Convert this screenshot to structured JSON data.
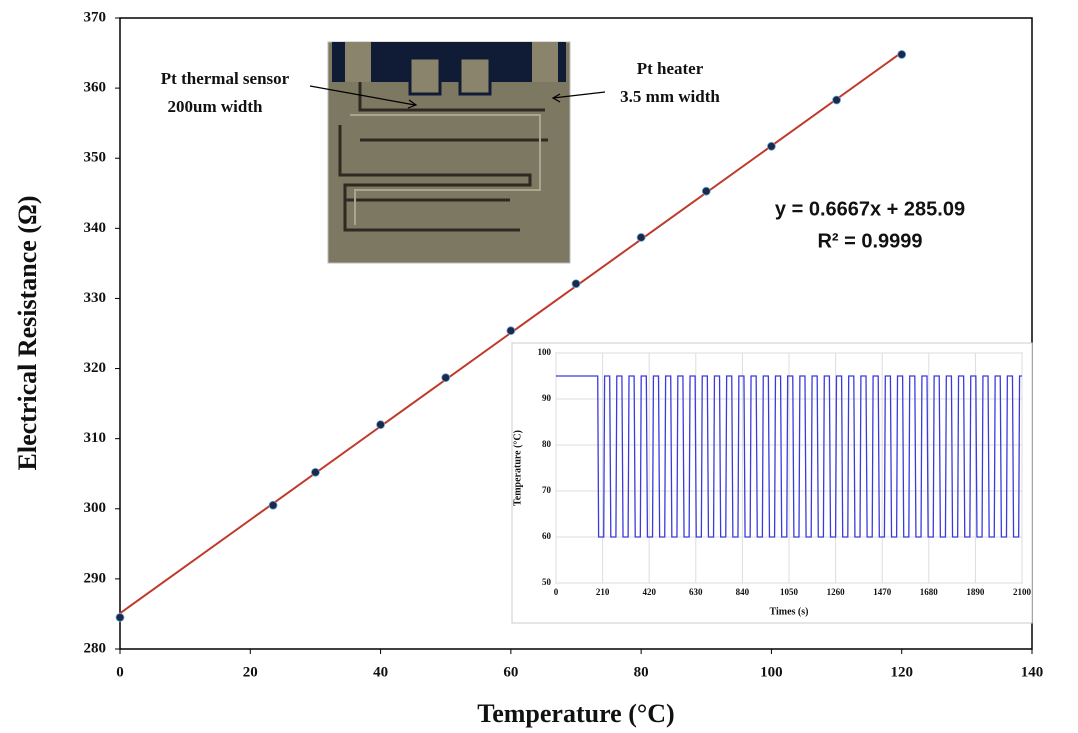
{
  "chart_data": [
    {
      "type": "scatter",
      "xlabel": "Temperature (°C)",
      "ylabel": "Electrical Resistance (Ω)",
      "series": [
        {
          "x": [
            0,
            23.5,
            30,
            40,
            50,
            60,
            70,
            80,
            90,
            100,
            110,
            120
          ],
          "values": [
            284.5,
            300.5,
            305.2,
            312,
            318.7,
            325.4,
            332.1,
            338.7,
            345.3,
            351.7,
            358.3,
            364.8
          ],
          "color": "#1b2a4a"
        }
      ],
      "trendline": {
        "x": [
          0,
          120
        ],
        "values": [
          285.09,
          365.09
        ],
        "color": "#c0392b"
      },
      "annotations": [
        "y = 0.6667x + 285.09",
        "R² = 0.9999"
      ],
      "image_labels": [
        "Pt thermal sensor",
        "200um width",
        "Pt heater",
        "3.5 mm width"
      ],
      "xlim": [
        0,
        140
      ],
      "xticks": [
        0,
        20,
        40,
        60,
        80,
        100,
        120,
        140
      ],
      "ylim": [
        280,
        370
      ],
      "yticks": [
        280,
        290,
        300,
        310,
        320,
        330,
        340,
        350,
        360,
        370
      ],
      "grid": false
    },
    {
      "type": "line",
      "xlabel": "Times (s)",
      "ylabel": "Temperature (°C)",
      "x": [
        0,
        188,
        192,
        215,
        219,
        242,
        247,
        270,
        274,
        297,
        302,
        325,
        329,
        352,
        357,
        380,
        384,
        407,
        412,
        435,
        439,
        462,
        467,
        490,
        494,
        517,
        522,
        545,
        549,
        572,
        577,
        600,
        604,
        627,
        632,
        655,
        659,
        682,
        687,
        710,
        714,
        737,
        742,
        765,
        769,
        792,
        797,
        820,
        824,
        847,
        852,
        875,
        879,
        902,
        907,
        930,
        934,
        957,
        962,
        985,
        989,
        1012,
        1017,
        1040,
        1044,
        1067,
        1072,
        1095,
        1099,
        1122,
        1127,
        1150,
        1154,
        1177,
        1182,
        1205,
        1209,
        1232,
        1237,
        1260,
        1264,
        1287,
        1292,
        1315,
        1319,
        1342,
        1347,
        1370,
        1374,
        1397,
        1402,
        1425,
        1429,
        1452,
        1457,
        1480,
        1484,
        1507,
        1512,
        1535,
        1539,
        1562,
        1567,
        1590,
        1594,
        1617,
        1622,
        1645,
        1649,
        1672,
        1677,
        1700,
        1704,
        1727,
        1732,
        1755,
        1759,
        1782,
        1787,
        1810,
        1814,
        1837,
        1842,
        1865,
        1869,
        1892,
        1897,
        1920,
        1924,
        1947,
        1952,
        1975,
        1979,
        2002,
        2007,
        2030,
        2034,
        2057,
        2062,
        2085,
        2089,
        2100
      ],
      "series": [
        {
          "color": "#3b3bdc",
          "values": [
            95,
            95,
            60,
            60,
            95,
            95,
            60,
            60,
            95,
            95,
            60,
            60,
            95,
            95,
            60,
            60,
            95,
            95,
            60,
            60,
            95,
            95,
            60,
            60,
            95,
            95,
            60,
            60,
            95,
            95,
            60,
            60,
            95,
            95,
            60,
            60,
            95,
            95,
            60,
            60,
            95,
            95,
            60,
            60,
            95,
            95,
            60,
            60,
            95,
            95,
            60,
            60,
            95,
            95,
            60,
            60,
            95,
            95,
            60,
            60,
            95,
            95,
            60,
            60,
            95,
            95,
            60,
            60,
            95,
            95,
            60,
            60,
            95,
            95,
            60,
            60,
            95,
            95,
            60,
            60,
            95,
            95,
            60,
            60,
            95,
            95,
            60,
            60,
            95,
            95,
            60,
            60,
            95,
            95,
            60,
            60,
            95,
            95,
            60,
            60,
            95,
            95,
            60,
            60,
            95,
            95,
            60,
            60,
            95,
            95,
            60,
            60,
            95,
            95,
            60,
            60,
            95,
            95,
            60,
            60,
            95,
            95,
            60,
            60,
            95,
            95,
            60,
            60,
            95,
            95,
            60,
            60,
            95,
            95,
            60,
            60,
            95,
            95,
            60,
            60,
            95,
            95
          ]
        }
      ],
      "xlim": [
        0,
        2100
      ],
      "xticks": [
        0,
        210,
        420,
        630,
        840,
        1050,
        1260,
        1470,
        1680,
        1890,
        2100
      ],
      "ylim": [
        50,
        100
      ],
      "yticks": [
        50,
        60,
        70,
        80,
        90,
        100
      ],
      "grid": true
    }
  ]
}
